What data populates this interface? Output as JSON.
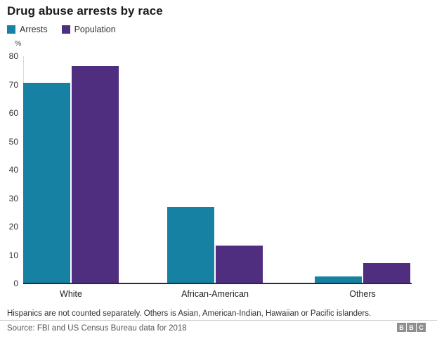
{
  "title": "Drug abuse arrests by race",
  "y_axis_unit": "%",
  "chart_data": {
    "type": "bar",
    "categories": [
      "White",
      "African-American",
      "Others"
    ],
    "series": [
      {
        "name": "Arrests",
        "color": "#1681a2",
        "values": [
          70.5,
          27,
          2.5
        ]
      },
      {
        "name": "Population",
        "color": "#4f2d7f",
        "values": [
          76.5,
          13.4,
          7.2
        ]
      }
    ],
    "title": "Drug abuse arrests by race",
    "xlabel": "",
    "ylabel": "%",
    "ylim": [
      0,
      80
    ],
    "yticks": [
      0,
      10,
      20,
      30,
      40,
      50,
      60,
      70,
      80
    ],
    "grid": false,
    "legend_position": "top-left"
  },
  "footnote": "Hispanics are not counted separately. Others is Asian, American-Indian, Hawaiian or Pacific islanders.",
  "source": "Source: FBI and US Census Bureau data for 2018",
  "logo": {
    "letters": [
      "B",
      "B",
      "C"
    ]
  }
}
